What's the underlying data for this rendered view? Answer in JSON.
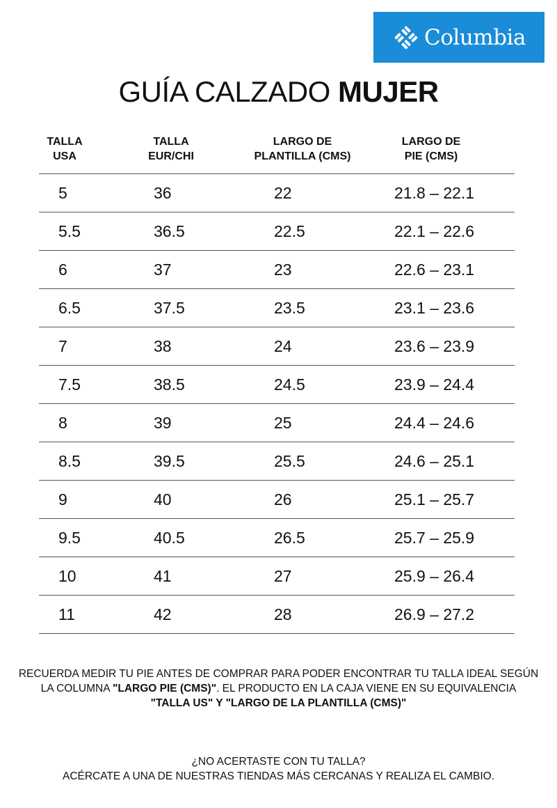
{
  "brand": {
    "name": "Columbia",
    "color": "#1a8cd8"
  },
  "title": {
    "regular": "GUÍA CALZADO ",
    "bold": "MUJER"
  },
  "columns": [
    [
      "TALLA",
      "USA"
    ],
    [
      "TALLA",
      "EUR/CHI"
    ],
    [
      "LARGO DE",
      "PLANTILLA (CMS)"
    ],
    [
      "LARGO DE",
      "PIE (CMS)"
    ]
  ],
  "rows": [
    [
      "5",
      "36",
      "22",
      "21.8 – 22.1"
    ],
    [
      "5.5",
      "36.5",
      "22.5",
      "22.1 – 22.6"
    ],
    [
      "6",
      "37",
      "23",
      "22.6 – 23.1"
    ],
    [
      "6.5",
      "37.5",
      "23.5",
      "23.1 – 23.6"
    ],
    [
      "7",
      "38",
      "24",
      "23.6 – 23.9"
    ],
    [
      "7.5",
      "38.5",
      "24.5",
      "23.9 – 24.4"
    ],
    [
      "8",
      "39",
      "25",
      "24.4 – 24.6"
    ],
    [
      "8.5",
      "39.5",
      "25.5",
      "24.6 – 25.1"
    ],
    [
      "9",
      "40",
      "26",
      "25.1 – 25.7"
    ],
    [
      "9.5",
      "40.5",
      "26.5",
      "25.7 – 25.9"
    ],
    [
      "10",
      "41",
      "27",
      "25.9 – 26.4"
    ],
    [
      "11",
      "42",
      "28",
      "26.9 – 27.2"
    ]
  ],
  "note": {
    "line1": "RECUERDA MEDIR TU PIE ANTES DE COMPRAR PARA PODER ENCONTRAR TU TALLA IDEAL SEGÚN",
    "line2a": "LA COLUMNA ",
    "line2b": "\"LARGO PIE (CMS)\"",
    "line2c": ". EL PRODUCTO EN LA CAJA VIENE EN SU EQUIVALENCIA",
    "line3": "\"TALLA US\" Y \"LARGO DE LA PLANTILLA (CMS)\""
  },
  "footer": {
    "line1": "¿NO ACERTASTE CON TU TALLA?",
    "line2": "ACÉRCATE A UNA DE NUESTRAS TIENDAS MÁS CERCANAS Y REALIZA EL CAMBIO."
  }
}
